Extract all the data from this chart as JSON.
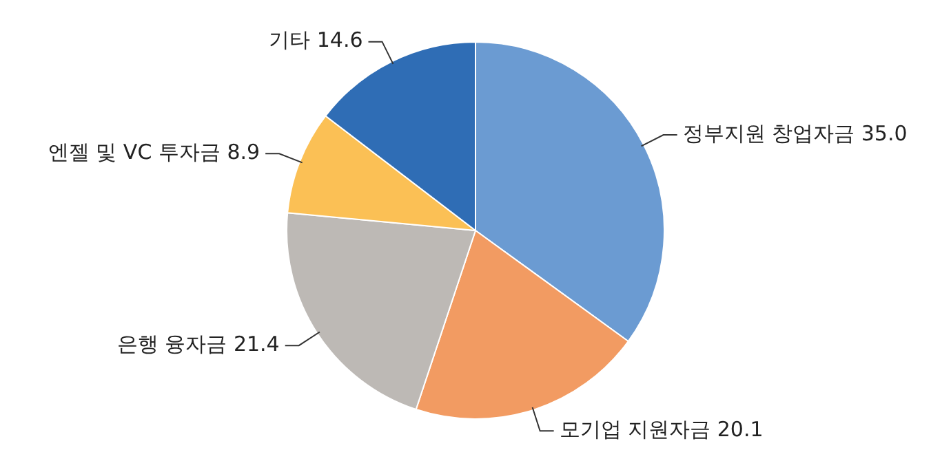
{
  "chart_data": {
    "type": "pie",
    "categories": [
      "정부지원 창업자금",
      "모기업 지원자금",
      "은행 융자금",
      "엔젤 및 VC 투자금",
      "기타"
    ],
    "values": [
      35.0,
      20.1,
      21.4,
      8.9,
      14.6
    ],
    "value_labels": [
      "35.0",
      "20.1",
      "21.4",
      "8.9",
      "14.6"
    ],
    "colors": [
      "#6b9bd2",
      "#f29b62",
      "#bdb9b5",
      "#fbc055",
      "#2f6db5"
    ],
    "legend": false
  }
}
